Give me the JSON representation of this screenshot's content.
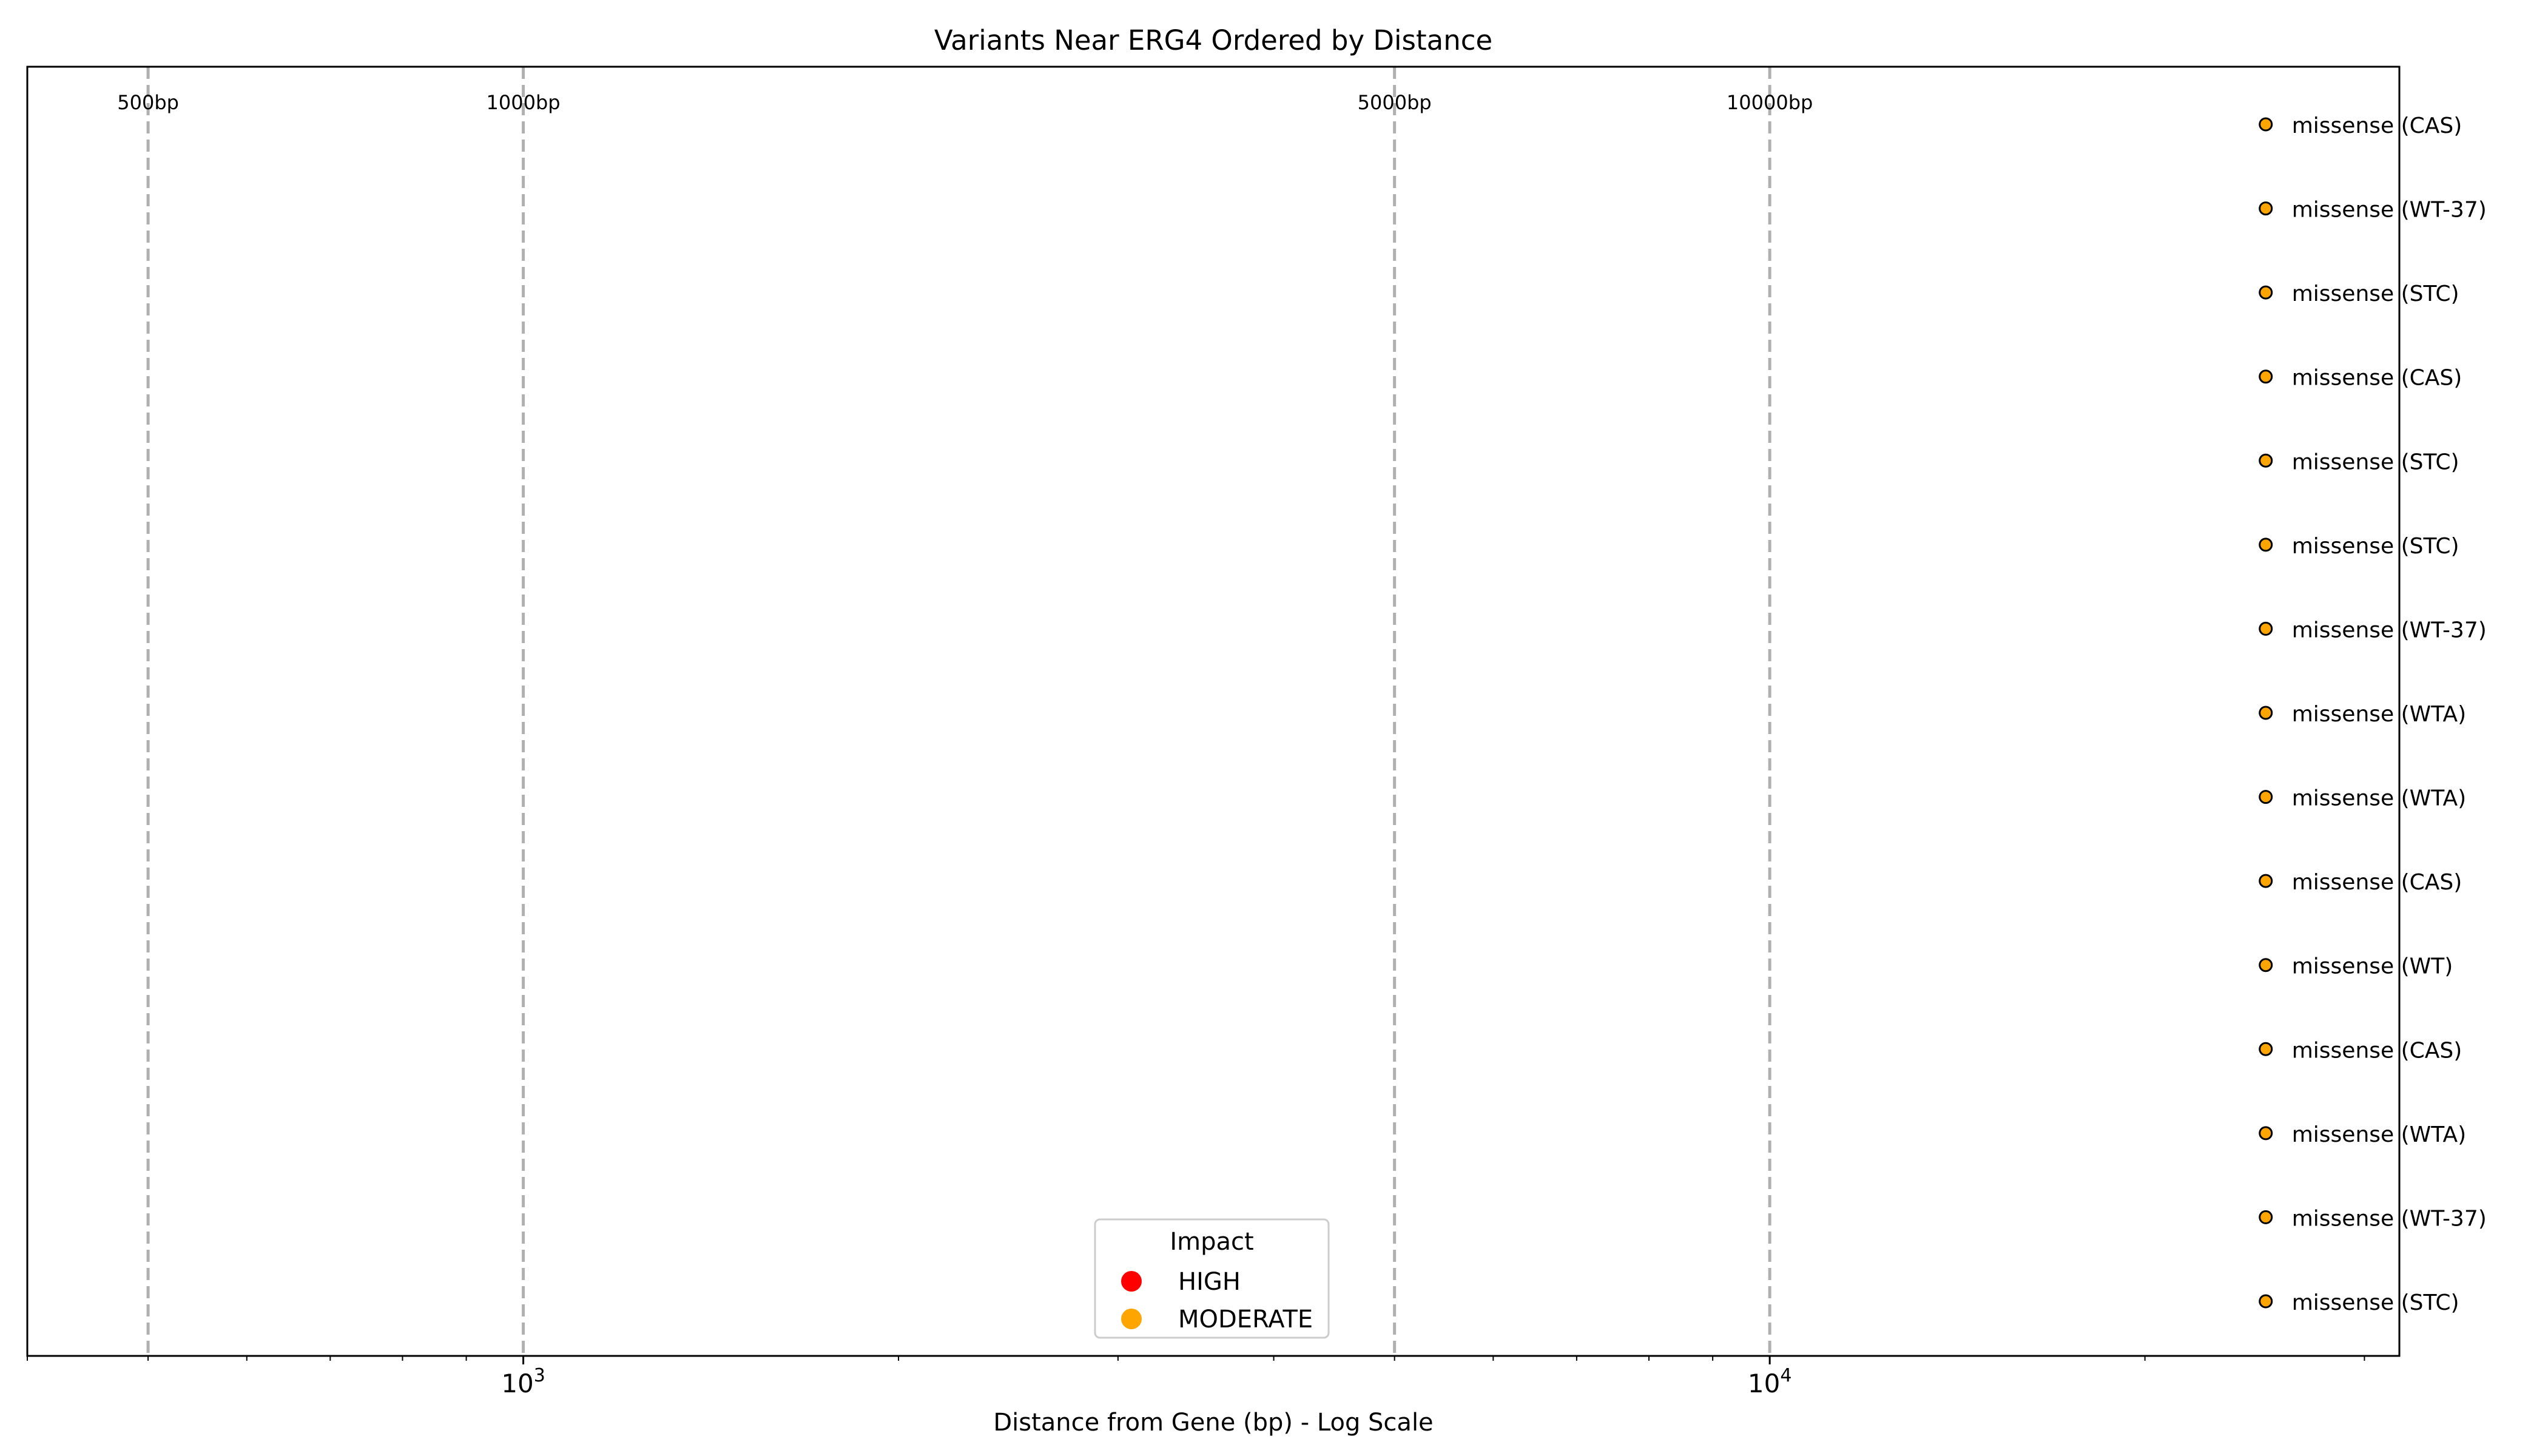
{
  "chart_data": {
    "type": "scatter",
    "title": "Variants Near ERG4 Ordered by Distance",
    "xlabel": "Distance from Gene (bp) - Log Scale",
    "ylabel": "",
    "x_scale": "log",
    "xlim": [
      400,
      32000
    ],
    "x_ticks": [
      {
        "value": 1000,
        "base": "10",
        "exponent": "3"
      },
      {
        "value": 10000,
        "base": "10",
        "exponent": "4"
      }
    ],
    "reference_lines": [
      {
        "x": 500,
        "label": "500bp"
      },
      {
        "x": 1000,
        "label": "1000bp"
      },
      {
        "x": 5000,
        "label": "5000bp"
      },
      {
        "x": 10000,
        "label": "10000bp"
      }
    ],
    "points": [
      {
        "x": 25000,
        "label": "missense (CAS)",
        "impact": "MODERATE"
      },
      {
        "x": 25000,
        "label": "missense (WT-37)",
        "impact": "MODERATE"
      },
      {
        "x": 25000,
        "label": "missense (STC)",
        "impact": "MODERATE"
      },
      {
        "x": 25000,
        "label": "missense (CAS)",
        "impact": "MODERATE"
      },
      {
        "x": 25000,
        "label": "missense (STC)",
        "impact": "MODERATE"
      },
      {
        "x": 25000,
        "label": "missense (STC)",
        "impact": "MODERATE"
      },
      {
        "x": 25000,
        "label": "missense (WT-37)",
        "impact": "MODERATE"
      },
      {
        "x": 25000,
        "label": "missense (WTA)",
        "impact": "MODERATE"
      },
      {
        "x": 25000,
        "label": "missense (WTA)",
        "impact": "MODERATE"
      },
      {
        "x": 25000,
        "label": "missense (CAS)",
        "impact": "MODERATE"
      },
      {
        "x": 25000,
        "label": "missense (WT)",
        "impact": "MODERATE"
      },
      {
        "x": 25000,
        "label": "missense (CAS)",
        "impact": "MODERATE"
      },
      {
        "x": 25000,
        "label": "missense (WTA)",
        "impact": "MODERATE"
      },
      {
        "x": 25000,
        "label": "missense (WT-37)",
        "impact": "MODERATE"
      },
      {
        "x": 25000,
        "label": "missense (STC)",
        "impact": "MODERATE"
      }
    ],
    "legend": {
      "title": "Impact",
      "placement": "lower center",
      "entries": [
        {
          "label": "HIGH",
          "color": "#ff0000"
        },
        {
          "label": "MODERATE",
          "color": "#ffa500"
        }
      ]
    },
    "colors": {
      "HIGH": "#ff0000",
      "MODERATE": "#ffa500",
      "reference_line": "#b0b0b0"
    },
    "grid": false
  }
}
